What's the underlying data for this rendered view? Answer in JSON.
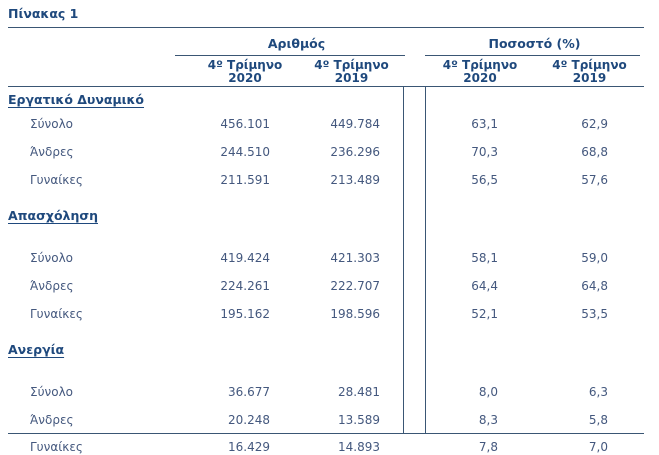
{
  "title": "Πίνακας 1",
  "colors": {
    "heading_text": "#1F497D",
    "body_text": "#44587E",
    "rule": "#3A5674"
  },
  "table": {
    "groups": [
      {
        "label": "Αριθμός"
      },
      {
        "label": "Ποσοστό (%)"
      }
    ],
    "subheaders": [
      {
        "line1": "4º Τρίμηνο",
        "line2": "2020"
      },
      {
        "line1": "4º Τρίμηνο",
        "line2": "2019"
      },
      {
        "line1": "4º Τρίμηνο",
        "line2": "2020"
      },
      {
        "line1": "4º Τρίμηνο",
        "line2": "2019"
      }
    ],
    "sections": [
      {
        "title": "Εργατικό Δυναμικό",
        "rows": [
          {
            "label": "Σύνολο",
            "num_2020": "456.101",
            "num_2019": "449.784",
            "pct_2020": "63,1",
            "pct_2019": "62,9"
          },
          {
            "label": "Άνδρες",
            "num_2020": "244.510",
            "num_2019": "236.296",
            "pct_2020": "70,3",
            "pct_2019": "68,8"
          },
          {
            "label": "Γυναίκες",
            "num_2020": "211.591",
            "num_2019": "213.489",
            "pct_2020": "56,5",
            "pct_2019": "57,6"
          }
        ]
      },
      {
        "title": "Απασχόληση",
        "rows": [
          {
            "label": "Σύνολο",
            "num_2020": "419.424",
            "num_2019": "421.303",
            "pct_2020": "58,1",
            "pct_2019": "59,0"
          },
          {
            "label": "Άνδρες",
            "num_2020": "224.261",
            "num_2019": "222.707",
            "pct_2020": "64,4",
            "pct_2019": "64,8"
          },
          {
            "label": "Γυναίκες",
            "num_2020": "195.162",
            "num_2019": "198.596",
            "pct_2020": "52,1",
            "pct_2019": "53,5"
          }
        ]
      },
      {
        "title": "Ανεργία",
        "rows": [
          {
            "label": "Σύνολο",
            "num_2020": "36.677",
            "num_2019": "28.481",
            "pct_2020": "8,0",
            "pct_2019": "6,3"
          },
          {
            "label": "Άνδρες",
            "num_2020": "20.248",
            "num_2019": "13.589",
            "pct_2020": "8,3",
            "pct_2019": "5,8"
          },
          {
            "label": "Γυναίκες",
            "num_2020": "16.429",
            "num_2019": "14.893",
            "pct_2020": "7,8",
            "pct_2019": "7,0"
          }
        ]
      }
    ]
  }
}
